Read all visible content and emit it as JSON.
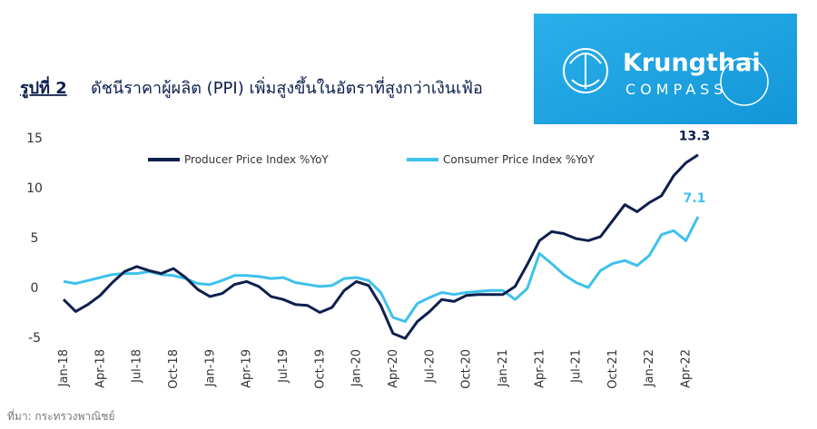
{
  "logo": {
    "brand": "Krungthai",
    "sub": "COMPASS"
  },
  "chart_data": {
    "type": "line",
    "title_prefix": "รูปที่ 2",
    "title": "ดัชนีราคาผู้ผลิต (PPI) เพิ่มสูงขึ้นในอัตราที่สูงกว่าเงินเฟ้อ",
    "source": "ที่มา: กระทรวงพาณิชย์",
    "categories": [
      "Jan-18",
      null,
      null,
      "Apr-18",
      null,
      null,
      "Jul-18",
      null,
      null,
      "Oct-18",
      null,
      null,
      "Jan-19",
      null,
      null,
      "Apr-19",
      null,
      null,
      "Jul-19",
      null,
      null,
      "Oct-19",
      null,
      null,
      "Jan-20",
      null,
      null,
      "Apr-20",
      null,
      null,
      "Jul-20",
      null,
      null,
      "Oct-20",
      null,
      null,
      "Jan-21",
      null,
      null,
      "Apr-21",
      null,
      null,
      "Jul-21",
      null,
      null,
      "Oct-21",
      null,
      null,
      "Jan-22",
      null,
      null,
      "Apr-22",
      null
    ],
    "series": [
      {
        "name": "Producer Price Index %YoY",
        "color": "#0d1f4d",
        "values": [
          -1.2,
          -2.4,
          -1.7,
          -0.8,
          0.5,
          1.6,
          2.1,
          1.7,
          1.4,
          1.9,
          1.0,
          -0.2,
          -0.9,
          -0.6,
          0.3,
          0.6,
          0.1,
          -0.9,
          -1.2,
          -1.7,
          -1.8,
          -2.5,
          -2.0,
          -0.3,
          0.6,
          0.2,
          -1.8,
          -4.6,
          -5.1,
          -3.4,
          -2.4,
          -1.2,
          -1.4,
          -0.8,
          -0.7,
          -0.7,
          -0.7,
          0.1,
          2.3,
          4.7,
          5.6,
          5.4,
          4.9,
          4.7,
          5.1,
          6.7,
          8.3,
          7.6,
          8.5,
          9.2,
          11.2,
          12.5,
          13.3
        ]
      },
      {
        "name": "Consumer Price Index %YoY",
        "color": "#3ec1ec",
        "values": [
          0.6,
          0.4,
          0.7,
          1.0,
          1.3,
          1.4,
          1.4,
          1.6,
          1.3,
          1.2,
          0.9,
          0.4,
          0.3,
          0.7,
          1.2,
          1.2,
          1.1,
          0.9,
          1.0,
          0.5,
          0.3,
          0.1,
          0.2,
          0.9,
          1.0,
          0.7,
          -0.5,
          -3.0,
          -3.4,
          -1.6,
          -1.0,
          -0.5,
          -0.7,
          -0.5,
          -0.4,
          -0.3,
          -0.3,
          -1.2,
          -0.1,
          3.4,
          2.4,
          1.3,
          0.5,
          0.0,
          1.7,
          2.4,
          2.7,
          2.2,
          3.2,
          5.3,
          5.7,
          4.7,
          7.1
        ]
      }
    ],
    "ylim": [
      -5.5,
      15.5
    ],
    "yticks": [
      15,
      10,
      5,
      0,
      -5
    ],
    "grid": false
  }
}
